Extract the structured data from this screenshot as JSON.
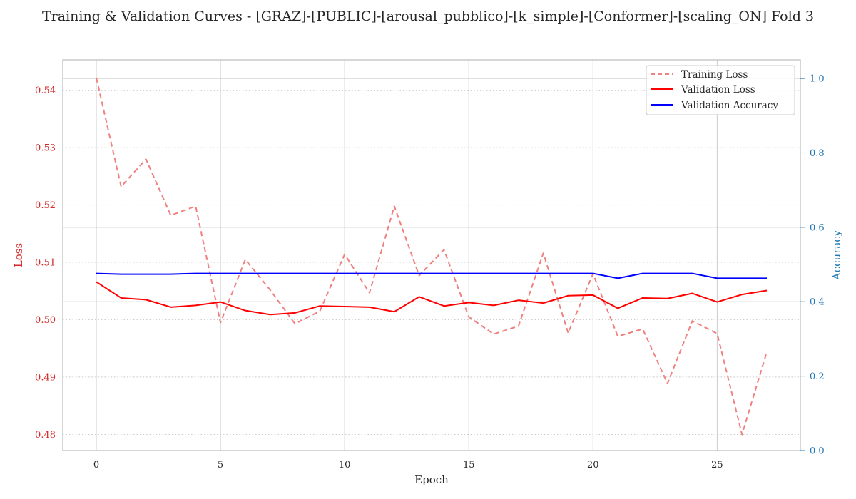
{
  "chart_data": {
    "type": "line",
    "title": "Training & Validation Curves - [GRAZ]-[PUBLIC]-[arousal_pubblico]-[k_simple]-[Conformer]-[scaling_ON] Fold 3",
    "xlabel": "Epoch",
    "ylabel_left": "Loss",
    "ylabel_right": "Accuracy",
    "xlim": [
      -1.35,
      28.35
    ],
    "ylim_left": [
      0.4772,
      0.5453
    ],
    "ylim_right": [
      0.0,
      1.05
    ],
    "x_ticks": [
      0,
      5,
      10,
      15,
      20,
      25
    ],
    "y_left_ticks": [
      0.48,
      0.49,
      0.5,
      0.51,
      0.52,
      0.53,
      0.54
    ],
    "y_left_tick_labels": [
      "0.48",
      "0.49",
      "0.50",
      "0.51",
      "0.52",
      "0.53",
      "0.54"
    ],
    "y_right_ticks": [
      0.0,
      0.2,
      0.4,
      0.6,
      0.8,
      1.0
    ],
    "y_right_tick_labels": [
      "0.0",
      "0.2",
      "0.4",
      "0.6",
      "0.8",
      "1.0"
    ],
    "grid": true,
    "legend_position": "top-right",
    "colors": {
      "training_loss": "#f08080",
      "validation_loss": "#ff0000",
      "validation_accuracy": "#0000ff",
      "left_axis": "#d62728",
      "right_axis": "#1f77b4",
      "grid": "#cccccc",
      "frame": "#c8c8c8"
    },
    "x": [
      0,
      1,
      2,
      3,
      4,
      5,
      6,
      7,
      8,
      9,
      10,
      11,
      12,
      13,
      14,
      15,
      16,
      17,
      18,
      19,
      20,
      21,
      22,
      23,
      24,
      25,
      26,
      27
    ],
    "series": [
      {
        "name": "Training Loss",
        "axis": "left",
        "style": "dashed",
        "values": [
          0.5422,
          0.5232,
          0.528,
          0.5182,
          0.5198,
          0.4995,
          0.5105,
          0.5052,
          0.4993,
          0.5015,
          0.5114,
          0.5047,
          0.5198,
          0.5077,
          0.5122,
          0.5005,
          0.4975,
          0.4989,
          0.5116,
          0.4977,
          0.508,
          0.4971,
          0.4984,
          0.4889,
          0.4998,
          0.4976,
          0.48,
          0.4944
        ]
      },
      {
        "name": "Validation Loss",
        "axis": "left",
        "style": "solid",
        "values": [
          0.5066,
          0.5038,
          0.5035,
          0.5022,
          0.5025,
          0.5031,
          0.5016,
          0.5009,
          0.5012,
          0.5024,
          0.5023,
          0.5022,
          0.5014,
          0.504,
          0.5024,
          0.503,
          0.5025,
          0.5034,
          0.5029,
          0.5042,
          0.5043,
          0.502,
          0.5038,
          0.5037,
          0.5046,
          0.5031,
          0.5044,
          0.5051
        ]
      },
      {
        "name": "Validation Accuracy",
        "axis": "right",
        "style": "solid",
        "values": [
          0.476,
          0.474,
          0.474,
          0.474,
          0.476,
          0.476,
          0.476,
          0.476,
          0.476,
          0.476,
          0.476,
          0.476,
          0.476,
          0.476,
          0.476,
          0.476,
          0.476,
          0.476,
          0.476,
          0.476,
          0.476,
          0.463,
          0.476,
          0.476,
          0.476,
          0.463,
          0.463,
          0.463
        ]
      }
    ]
  }
}
